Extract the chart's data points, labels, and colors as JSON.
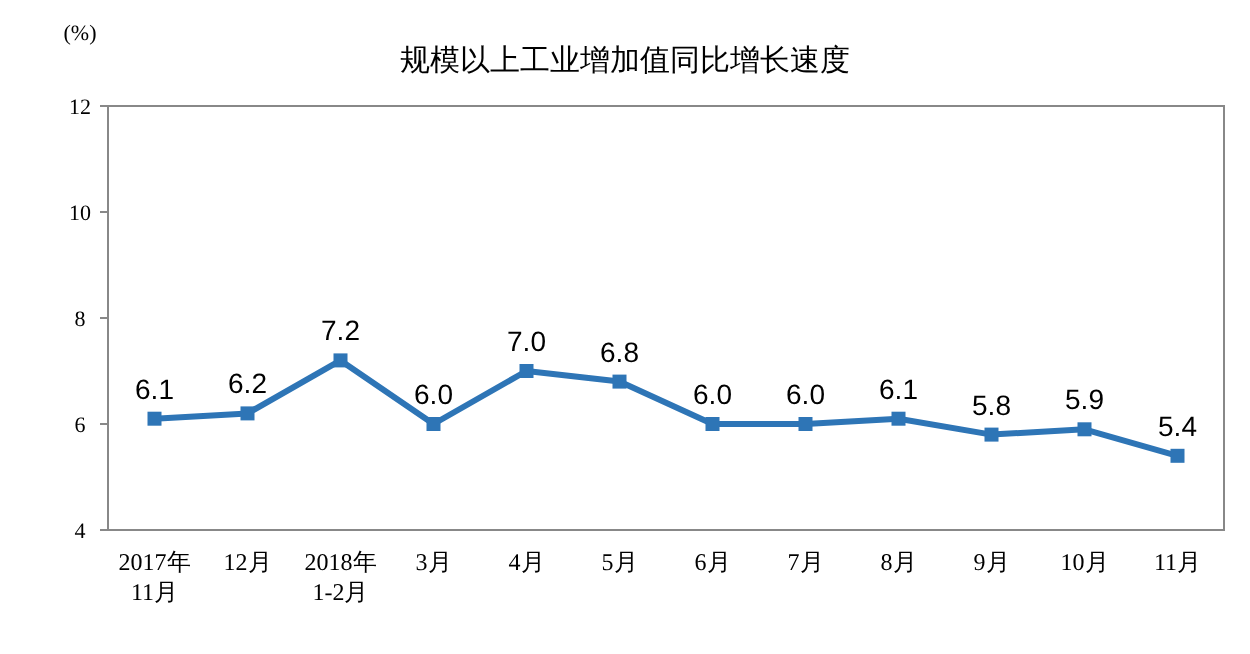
{
  "chart_data": {
    "type": "line",
    "title": "规模以上工业增加值同比增长速度",
    "ylabel": "(%)",
    "categories": [
      "2017年\n11月",
      "12月",
      "2018年\n1-2月",
      "3月",
      "4月",
      "5月",
      "6月",
      "7月",
      "8月",
      "9月",
      "10月",
      "11月"
    ],
    "series": [
      {
        "color": "#2e75b6",
        "values": [
          6.1,
          6.2,
          7.2,
          6.0,
          7.0,
          6.8,
          6.0,
          6.0,
          6.1,
          5.8,
          5.9,
          5.4
        ]
      }
    ],
    "value_labels": [
      "6.1",
      "6.2",
      "7.2",
      "6.0",
      "7.0",
      "6.8",
      "6.0",
      "6.0",
      "6.1",
      "5.8",
      "5.9",
      "5.4"
    ],
    "ylim": [
      4,
      12
    ],
    "yticks": [
      4,
      6,
      8,
      10,
      12
    ],
    "grid": false,
    "marker": "square",
    "line_style": "solid"
  }
}
